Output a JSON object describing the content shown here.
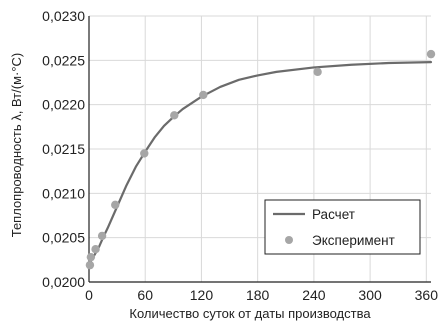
{
  "chart_data": {
    "type": "line",
    "xlabel": "Количество суток от даты производства",
    "ylabel": "Теплопроводность λ, Вт/(м·°С)",
    "xlim": [
      0,
      365
    ],
    "ylim": [
      0.02,
      0.023
    ],
    "x_ticks": [
      {
        "value": 0,
        "label": "0"
      },
      {
        "value": 60,
        "label": "60"
      },
      {
        "value": 120,
        "label": "120"
      },
      {
        "value": 180,
        "label": "180"
      },
      {
        "value": 240,
        "label": "240"
      },
      {
        "value": 300,
        "label": "300"
      },
      {
        "value": 360,
        "label": "360"
      }
    ],
    "y_ticks": [
      {
        "value": 0.02,
        "label": "0,0200"
      },
      {
        "value": 0.0205,
        "label": "0,0205"
      },
      {
        "value": 0.021,
        "label": "0,0210"
      },
      {
        "value": 0.0215,
        "label": "0,0215"
      },
      {
        "value": 0.022,
        "label": "0,0220"
      },
      {
        "value": 0.0225,
        "label": "0,0225"
      },
      {
        "value": 0.023,
        "label": "0,0230"
      }
    ],
    "grid": true,
    "legend_position": "bottom-right",
    "series": [
      {
        "name": "Расчет",
        "type": "line",
        "color": "#6b6b6b",
        "x": [
          0,
          5,
          10,
          15,
          20,
          30,
          40,
          50,
          60,
          70,
          80,
          90,
          100,
          120,
          140,
          160,
          180,
          200,
          240,
          280,
          320,
          365
        ],
        "y": [
          0.0202,
          0.02029,
          0.02038,
          0.0205,
          0.02061,
          0.02085,
          0.02109,
          0.0213,
          0.02147,
          0.02163,
          0.02176,
          0.02186,
          0.02195,
          0.02209,
          0.0222,
          0.02228,
          0.02233,
          0.02237,
          0.02242,
          0.02245,
          0.02247,
          0.02248
        ]
      },
      {
        "name": "Эксперимент",
        "type": "scatter",
        "color": "#a6a6a6",
        "x": [
          1,
          2,
          7,
          14,
          28,
          59,
          91,
          122,
          244,
          365
        ],
        "y": [
          0.02019,
          0.02028,
          0.02037,
          0.02052,
          0.02087,
          0.02145,
          0.02188,
          0.02211,
          0.02237,
          0.02257
        ]
      }
    ]
  }
}
